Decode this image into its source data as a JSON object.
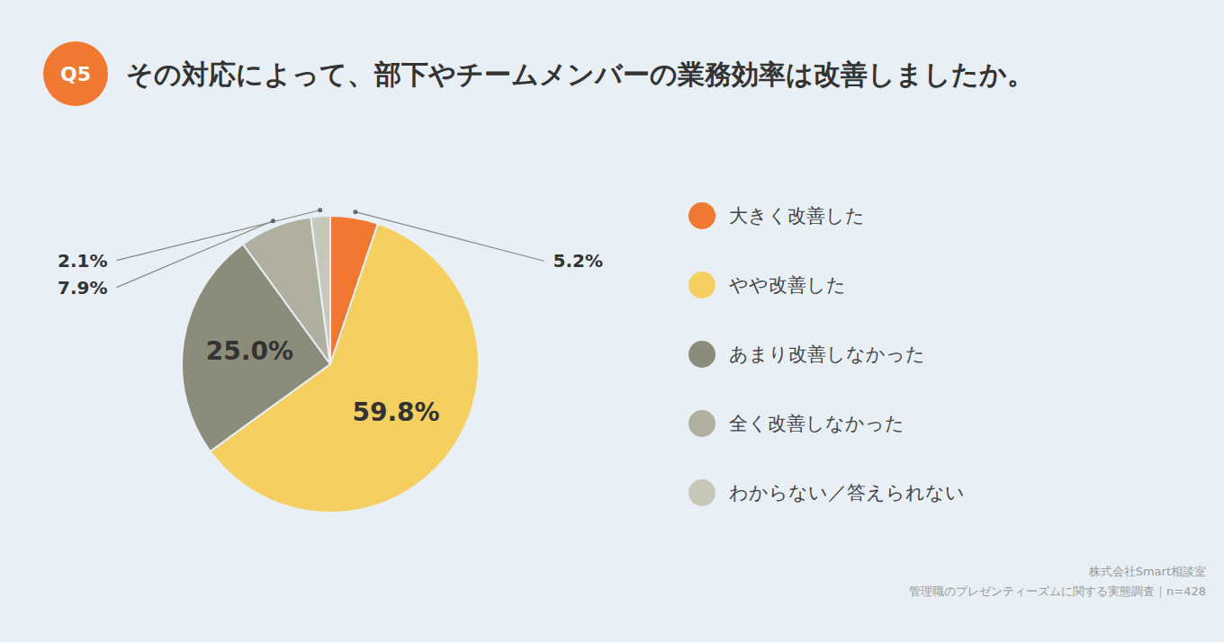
{
  "chart_data": {
    "type": "pie",
    "title": "その対応によって、部下やチームメンバーの業務効率は改善しましたか。",
    "categories": [
      "大きく改善した",
      "やや改善した",
      "あまり改善しなかった",
      "全く改善しなかった",
      "わからない／答えられない"
    ],
    "values": [
      5.2,
      59.8,
      25.0,
      7.9,
      2.1
    ],
    "value_labels": [
      "5.2%",
      "59.8%",
      "25.0%",
      "7.9%",
      "2.1%"
    ],
    "colors": [
      "#F07830",
      "#F5D060",
      "#8C8C7A",
      "#B0AFA0",
      "#C8C8B8"
    ],
    "data_labels": true,
    "legend": "right",
    "annotations": [
      "Q5",
      "株式会社Smart相談室",
      "管理職のプレゼンティーズムに関する実態調査｜n=428"
    ]
  }
}
